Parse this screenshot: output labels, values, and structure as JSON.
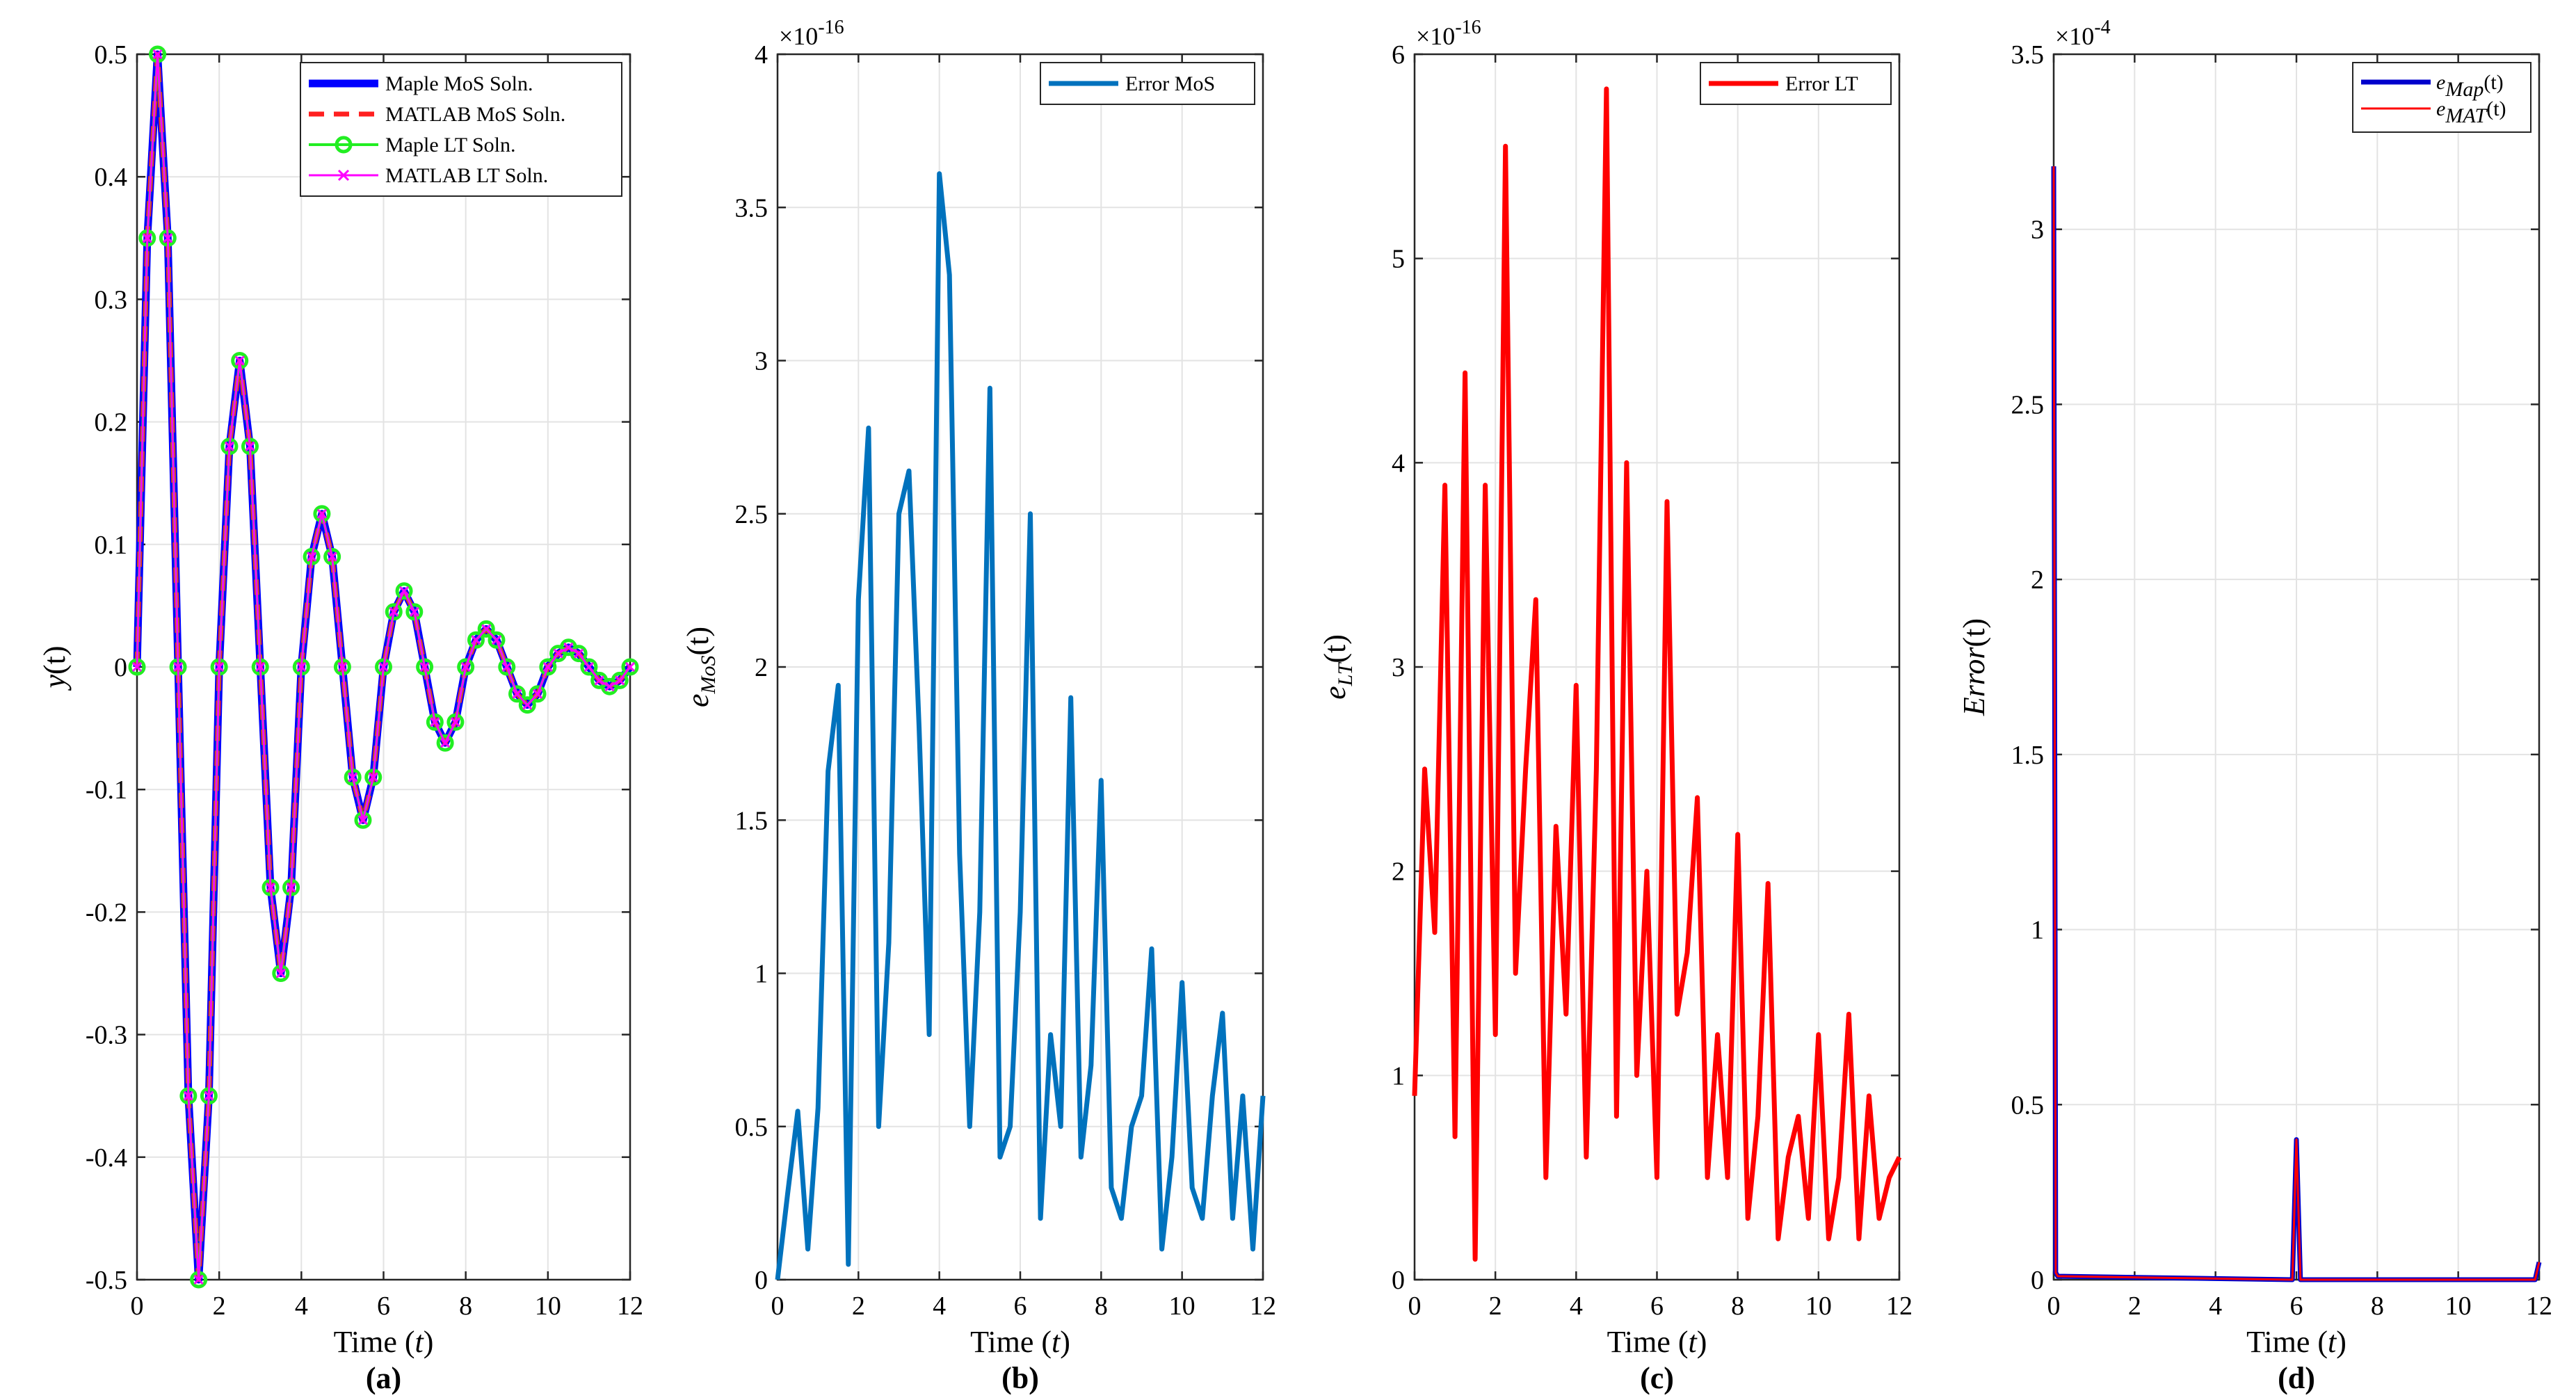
{
  "chart_data": [
    {
      "type": "line",
      "panel_label": "(a)",
      "xlabel": "Time (t)",
      "ylabel": "y(t)",
      "xlim": [
        0,
        12
      ],
      "ylim": [
        -0.5,
        0.5
      ],
      "xticks": [
        0,
        2,
        4,
        6,
        8,
        10,
        12
      ],
      "xtick_labels": [
        "0",
        "2",
        "4",
        "6",
        "8",
        "10",
        "12"
      ],
      "yticks": [
        -0.5,
        -0.4,
        -0.3,
        -0.2,
        -0.1,
        0,
        0.1,
        0.2,
        0.3,
        0.4,
        0.5
      ],
      "ytick_labels": [
        "-0.5",
        "-0.4",
        "-0.3",
        "-0.2",
        "-0.1",
        "0",
        "0.1",
        "0.2",
        "0.3",
        "0.4",
        "0.5"
      ],
      "exponent": "",
      "grid": true,
      "legend_position": "top-right",
      "series": [
        {
          "name": "Maple MoS Soln.",
          "color": "#0000ff",
          "style": "solid-thick",
          "x": [
            0,
            0.25,
            0.5,
            0.75,
            1,
            1.25,
            1.5,
            1.75,
            2,
            2.25,
            2.5,
            2.75,
            3,
            3.25,
            3.5,
            3.75,
            4,
            4.25,
            4.5,
            4.75,
            5,
            5.25,
            5.5,
            5.75,
            6,
            6.25,
            6.5,
            6.75,
            7,
            7.25,
            7.5,
            7.75,
            8,
            8.25,
            8.5,
            8.75,
            9,
            9.25,
            9.5,
            9.75,
            10,
            10.25,
            10.5,
            10.75,
            11,
            11.25,
            11.5,
            11.75,
            12
          ],
          "values": [
            0,
            0.35,
            0.5,
            0.35,
            0,
            -0.35,
            -0.5,
            -0.35,
            0,
            0.18,
            0.25,
            0.18,
            0,
            -0.18,
            -0.25,
            -0.18,
            0,
            0.09,
            0.125,
            0.09,
            0,
            -0.09,
            -0.125,
            -0.09,
            0,
            0.045,
            0.062,
            0.045,
            0,
            -0.045,
            -0.062,
            -0.045,
            0,
            0.022,
            0.031,
            0.022,
            0,
            -0.022,
            -0.031,
            -0.022,
            0,
            0.011,
            0.016,
            0.011,
            0,
            -0.011,
            -0.016,
            -0.011,
            0
          ]
        },
        {
          "name": "MATLAB MoS Soln.",
          "color": "#ff2020",
          "style": "dashed",
          "x": [
            0,
            0.25,
            0.5,
            0.75,
            1,
            1.25,
            1.5,
            1.75,
            2,
            2.25,
            2.5,
            2.75,
            3,
            3.25,
            3.5,
            3.75,
            4,
            4.25,
            4.5,
            4.75,
            5,
            5.25,
            5.5,
            5.75,
            6,
            6.25,
            6.5,
            6.75,
            7,
            7.25,
            7.5,
            7.75,
            8,
            8.25,
            8.5,
            8.75,
            9,
            9.25,
            9.5,
            9.75,
            10,
            10.25,
            10.5,
            10.75,
            11,
            11.25,
            11.5,
            11.75,
            12
          ],
          "values": [
            0,
            0.35,
            0.5,
            0.35,
            0,
            -0.35,
            -0.5,
            -0.35,
            0,
            0.18,
            0.25,
            0.18,
            0,
            -0.18,
            -0.25,
            -0.18,
            0,
            0.09,
            0.125,
            0.09,
            0,
            -0.09,
            -0.125,
            -0.09,
            0,
            0.045,
            0.062,
            0.045,
            0,
            -0.045,
            -0.062,
            -0.045,
            0,
            0.022,
            0.031,
            0.022,
            0,
            -0.022,
            -0.031,
            -0.022,
            0,
            0.011,
            0.016,
            0.011,
            0,
            -0.011,
            -0.016,
            -0.011,
            0
          ]
        },
        {
          "name": "Maple LT Soln.",
          "color": "#22ee22",
          "style": "circle-markers",
          "x": [
            0,
            0.25,
            0.5,
            0.75,
            1,
            1.25,
            1.5,
            1.75,
            2,
            2.25,
            2.5,
            2.75,
            3,
            3.25,
            3.5,
            3.75,
            4,
            4.25,
            4.5,
            4.75,
            5,
            5.25,
            5.5,
            5.75,
            6,
            6.25,
            6.5,
            6.75,
            7,
            7.25,
            7.5,
            7.75,
            8,
            8.25,
            8.5,
            8.75,
            9,
            9.25,
            9.5,
            9.75,
            10,
            10.25,
            10.5,
            10.75,
            11,
            11.25,
            11.5,
            11.75,
            12
          ],
          "values": [
            0,
            0.35,
            0.5,
            0.35,
            0,
            -0.35,
            -0.5,
            -0.35,
            0,
            0.18,
            0.25,
            0.18,
            0,
            -0.18,
            -0.25,
            -0.18,
            0,
            0.09,
            0.125,
            0.09,
            0,
            -0.09,
            -0.125,
            -0.09,
            0,
            0.045,
            0.062,
            0.045,
            0,
            -0.045,
            -0.062,
            -0.045,
            0,
            0.022,
            0.031,
            0.022,
            0,
            -0.022,
            -0.031,
            -0.022,
            0,
            0.011,
            0.016,
            0.011,
            0,
            -0.011,
            -0.016,
            -0.011,
            0
          ]
        },
        {
          "name": "MATLAB LT Soln.",
          "color": "#ff00ff",
          "style": "x-markers",
          "x": [
            0,
            0.25,
            0.5,
            0.75,
            1,
            1.25,
            1.5,
            1.75,
            2,
            2.25,
            2.5,
            2.75,
            3,
            3.25,
            3.5,
            3.75,
            4,
            4.25,
            4.5,
            4.75,
            5,
            5.25,
            5.5,
            5.75,
            6,
            6.25,
            6.5,
            6.75,
            7,
            7.25,
            7.5,
            7.75,
            8,
            8.25,
            8.5,
            8.75,
            9,
            9.25,
            9.5,
            9.75,
            10,
            10.25,
            10.5,
            10.75,
            11,
            11.25,
            11.5,
            11.75,
            12
          ],
          "values": [
            0,
            0.35,
            0.5,
            0.35,
            0,
            -0.35,
            -0.5,
            -0.35,
            0,
            0.18,
            0.25,
            0.18,
            0,
            -0.18,
            -0.25,
            -0.18,
            0,
            0.09,
            0.125,
            0.09,
            0,
            -0.09,
            -0.125,
            -0.09,
            0,
            0.045,
            0.062,
            0.045,
            0,
            -0.045,
            -0.062,
            -0.045,
            0,
            0.022,
            0.031,
            0.022,
            0,
            -0.022,
            -0.031,
            -0.022,
            0,
            0.011,
            0.016,
            0.011,
            0,
            -0.011,
            -0.016,
            -0.011,
            0
          ]
        }
      ]
    },
    {
      "type": "line",
      "panel_label": "(b)",
      "xlabel": "Time (t)",
      "ylabel": "e_MoS(t)",
      "xlim": [
        0,
        12
      ],
      "ylim": [
        0,
        4
      ],
      "xticks": [
        0,
        2,
        4,
        6,
        8,
        10,
        12
      ],
      "xtick_labels": [
        "0",
        "2",
        "4",
        "6",
        "8",
        "10",
        "12"
      ],
      "yticks": [
        0,
        0.5,
        1,
        1.5,
        2,
        2.5,
        3,
        3.5,
        4
      ],
      "ytick_labels": [
        "0",
        "0.5",
        "1",
        "1.5",
        "2",
        "2.5",
        "3",
        "3.5",
        "4"
      ],
      "exponent": "×10",
      "exponent_power": "-16",
      "grid": true,
      "legend_position": "top-right",
      "series": [
        {
          "name": "Error MoS",
          "color": "#0072bd",
          "x": [
            0,
            0.25,
            0.5,
            0.75,
            1,
            1.25,
            1.5,
            1.75,
            2,
            2.25,
            2.5,
            2.75,
            3,
            3.25,
            3.5,
            3.75,
            4,
            4.25,
            4.5,
            4.75,
            5,
            5.25,
            5.5,
            5.75,
            6,
            6.25,
            6.5,
            6.75,
            7,
            7.25,
            7.5,
            7.75,
            8,
            8.25,
            8.5,
            8.75,
            9,
            9.25,
            9.5,
            9.75,
            10,
            10.25,
            10.5,
            10.75,
            11,
            11.25,
            11.5,
            11.75,
            12
          ],
          "values": [
            0,
            0.28,
            0.55,
            0.1,
            0.56,
            1.66,
            1.94,
            0.05,
            2.22,
            2.78,
            0.5,
            1.1,
            2.5,
            2.64,
            1.8,
            0.8,
            3.61,
            3.28,
            1.39,
            0.5,
            1.2,
            2.91,
            0.4,
            0.5,
            1.2,
            2.5,
            0.2,
            0.8,
            0.5,
            1.9,
            0.4,
            0.7,
            1.63,
            0.3,
            0.2,
            0.5,
            0.6,
            1.08,
            0.1,
            0.4,
            0.97,
            0.3,
            0.2,
            0.6,
            0.87,
            0.2,
            0.6,
            0.1,
            0.6
          ]
        }
      ]
    },
    {
      "type": "line",
      "panel_label": "(c)",
      "xlabel": "Time (t)",
      "ylabel": "e_LT(t)",
      "xlim": [
        0,
        12
      ],
      "ylim": [
        0,
        6
      ],
      "xticks": [
        0,
        2,
        4,
        6,
        8,
        10,
        12
      ],
      "xtick_labels": [
        "0",
        "2",
        "4",
        "6",
        "8",
        "10",
        "12"
      ],
      "yticks": [
        0,
        1,
        2,
        3,
        4,
        5,
        6
      ],
      "ytick_labels": [
        "0",
        "1",
        "2",
        "3",
        "4",
        "5",
        "6"
      ],
      "exponent": "×10",
      "exponent_power": "-16",
      "grid": true,
      "legend_position": "top-right",
      "series": [
        {
          "name": "Error LT",
          "color": "#ff0000",
          "x": [
            0,
            0.25,
            0.5,
            0.75,
            1,
            1.25,
            1.5,
            1.75,
            2,
            2.25,
            2.5,
            2.75,
            3,
            3.25,
            3.5,
            3.75,
            4,
            4.25,
            4.5,
            4.75,
            5,
            5.25,
            5.5,
            5.75,
            6,
            6.25,
            6.5,
            6.75,
            7,
            7.25,
            7.5,
            7.75,
            8,
            8.25,
            8.5,
            8.75,
            9,
            9.25,
            9.5,
            9.75,
            10,
            10.25,
            10.5,
            10.75,
            11,
            11.25,
            11.5,
            11.75,
            12
          ],
          "values": [
            0.9,
            2.5,
            1.7,
            3.89,
            0.7,
            4.44,
            0.1,
            3.89,
            1.2,
            5.55,
            1.5,
            2.5,
            3.33,
            0.5,
            2.22,
            1.3,
            2.91,
            0.6,
            2.5,
            5.83,
            0.8,
            4.0,
            1.0,
            2.0,
            0.5,
            3.81,
            1.3,
            1.6,
            2.36,
            0.5,
            1.2,
            0.5,
            2.18,
            0.3,
            0.8,
            1.94,
            0.2,
            0.6,
            0.8,
            0.3,
            1.2,
            0.2,
            0.5,
            1.3,
            0.2,
            0.9,
            0.3,
            0.5,
            0.6
          ]
        }
      ]
    },
    {
      "type": "line",
      "panel_label": "(d)",
      "xlabel": "Time (t)",
      "ylabel": "Error(t)",
      "xlim": [
        0,
        12
      ],
      "ylim": [
        0,
        3.5
      ],
      "xticks": [
        0,
        2,
        4,
        6,
        8,
        10,
        12
      ],
      "xtick_labels": [
        "0",
        "2",
        "4",
        "6",
        "8",
        "10",
        "12"
      ],
      "yticks": [
        0,
        0.5,
        1,
        1.5,
        2,
        2.5,
        3,
        3.5
      ],
      "ytick_labels": [
        "0",
        "0.5",
        "1",
        "1.5",
        "2",
        "2.5",
        "3",
        "3.5"
      ],
      "exponent": "×10",
      "exponent_power": "-4",
      "grid": true,
      "legend_position": "top-right",
      "series": [
        {
          "name": "e_Map(t)",
          "color": "#0000cc",
          "x": [
            0,
            0.05,
            0.1,
            5.9,
            6.0,
            6.1,
            11.9,
            12.0
          ],
          "values": [
            3.18,
            0.02,
            0.01,
            0.0,
            0.4,
            0.0,
            0.0,
            0.05
          ]
        },
        {
          "name": "e_MAT(t)",
          "color": "#ff0000",
          "x": [
            0,
            0.05,
            0.1,
            5.9,
            6.0,
            6.1,
            11.9,
            12.0
          ],
          "values": [
            3.18,
            0.02,
            0.01,
            0.0,
            0.4,
            0.0,
            0.0,
            0.05
          ]
        }
      ]
    }
  ]
}
